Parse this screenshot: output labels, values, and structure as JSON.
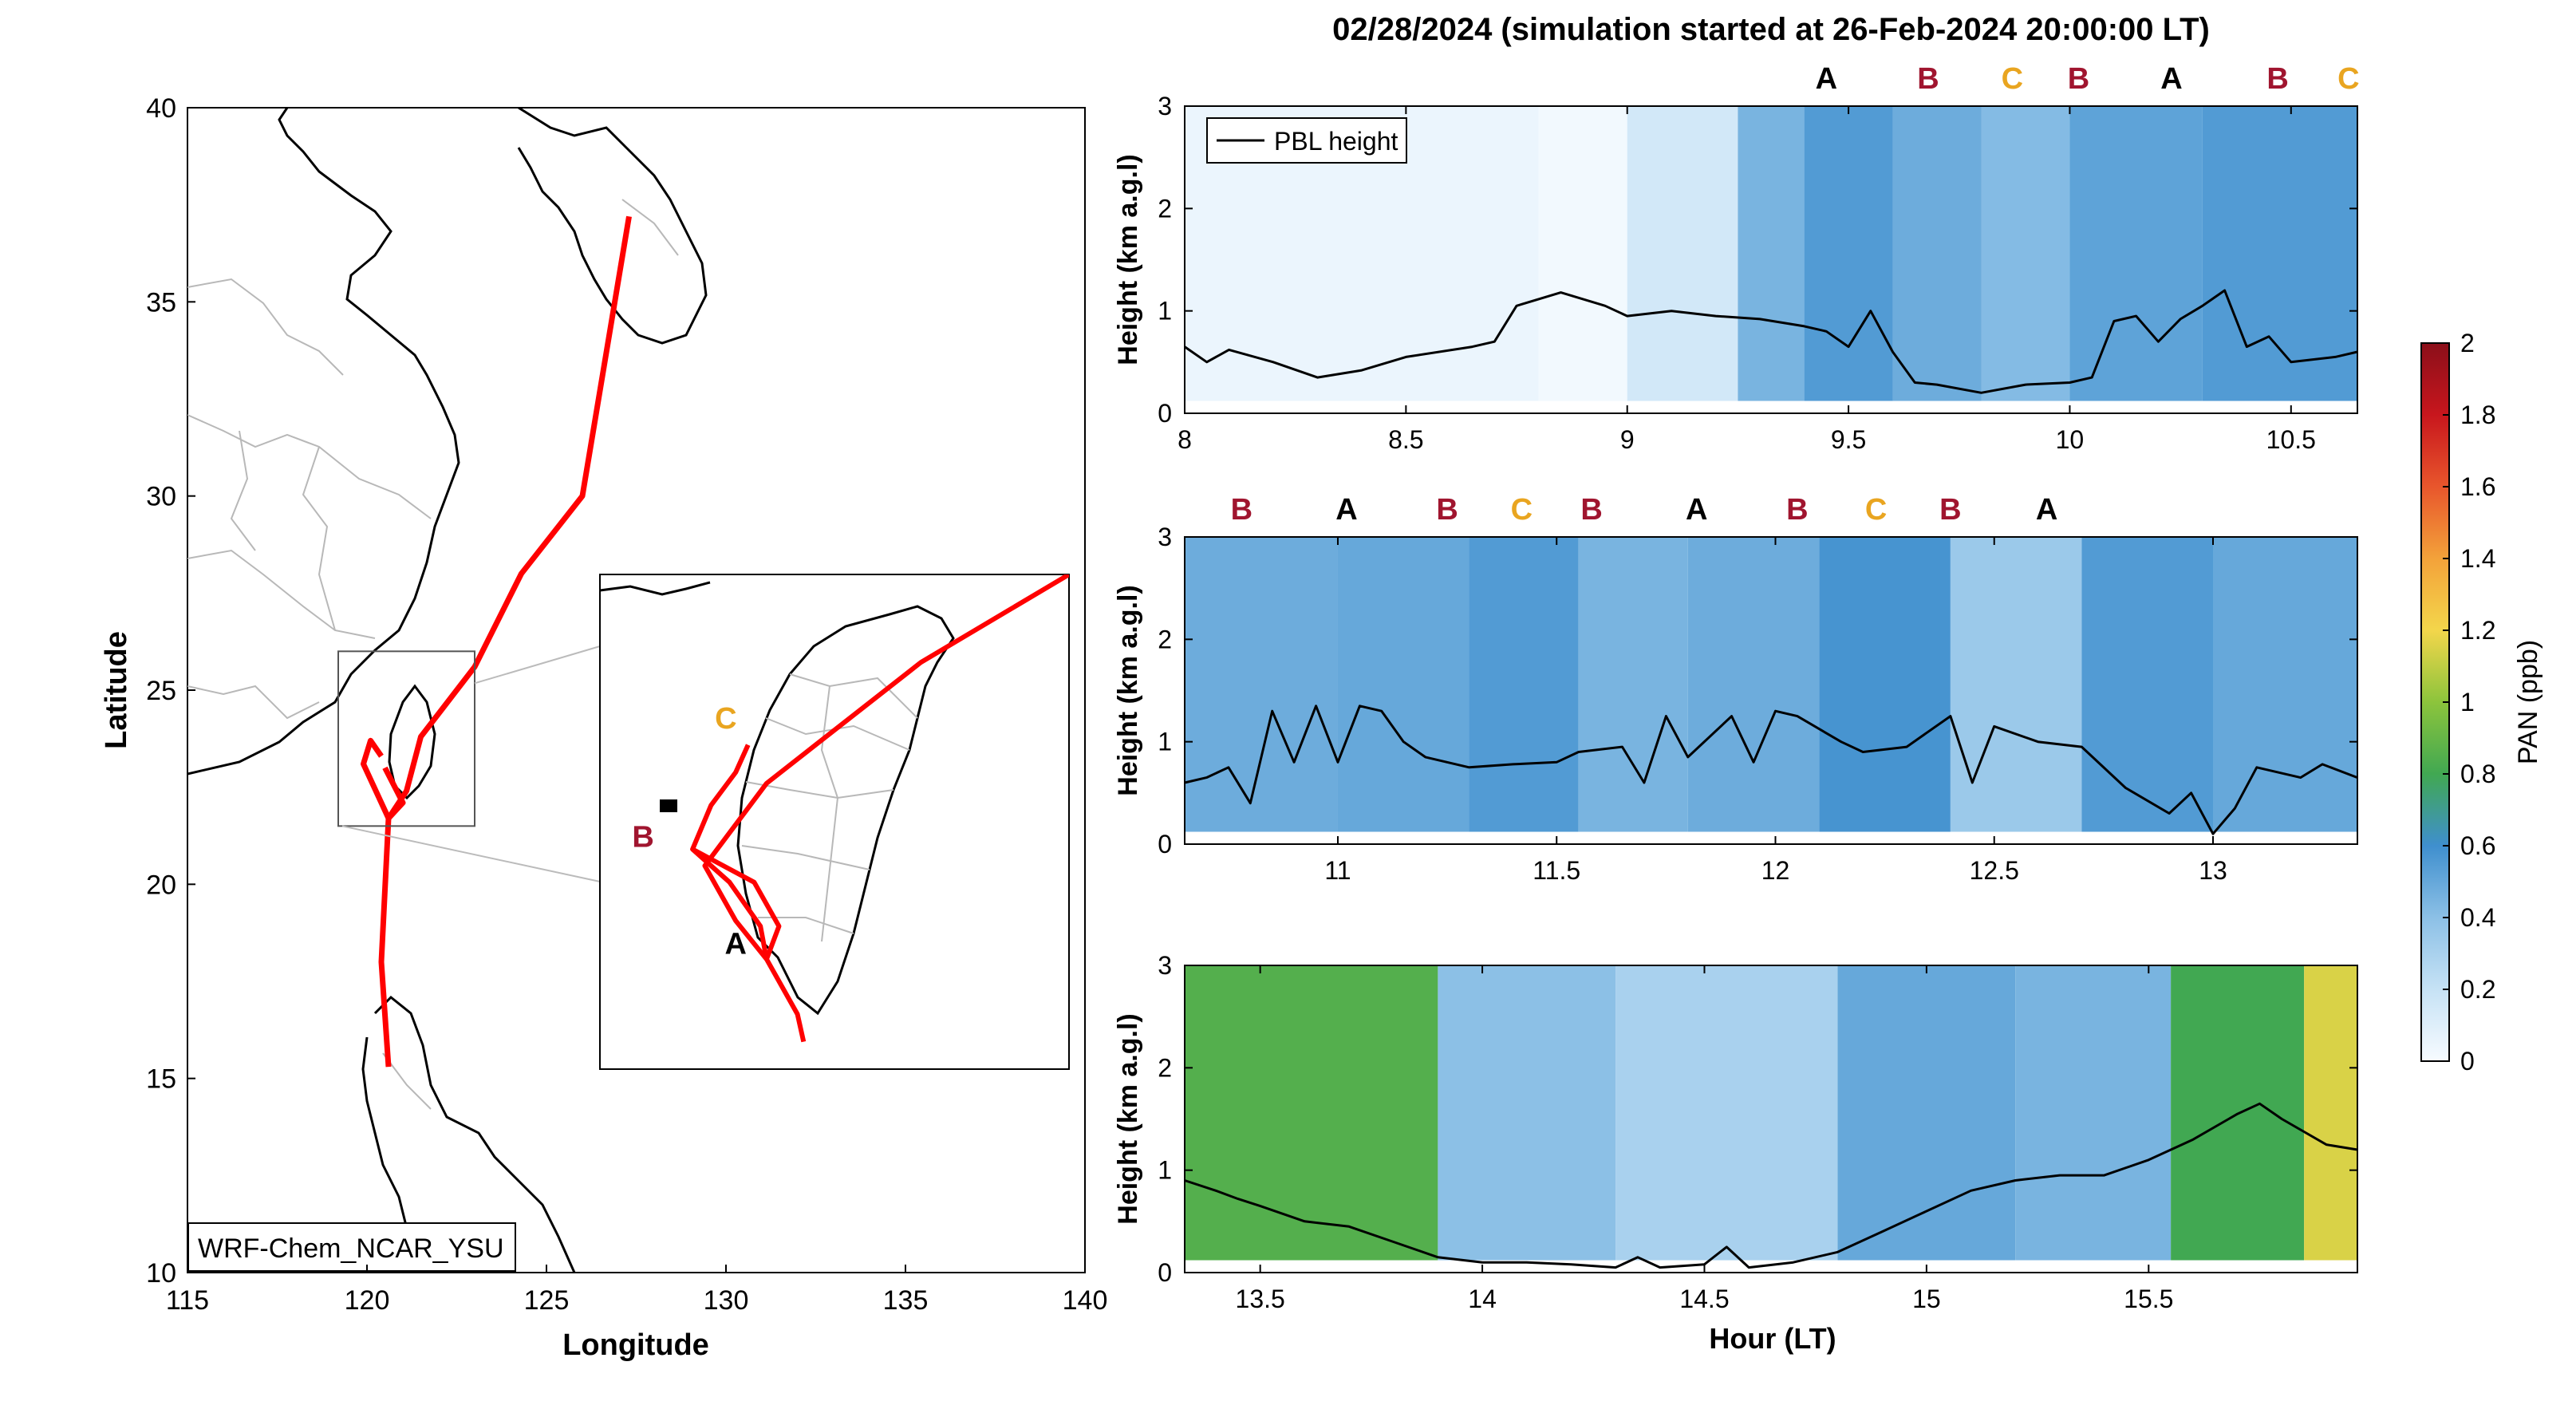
{
  "figure": {
    "title": "02/28/2024 (simulation started at 26-Feb-2024 20:00:00 LT)"
  },
  "map": {
    "xlabel": "Longitude",
    "ylabel": "Latitude",
    "xticks": [
      115,
      120,
      125,
      130,
      135,
      140
    ],
    "yticks": [
      10,
      15,
      20,
      25,
      30,
      35,
      40
    ],
    "xlim": [
      115,
      140
    ],
    "ylim": [
      10,
      40
    ],
    "model_label": "WRF-Chem_NCAR_YSU",
    "track_color": "#ff0000",
    "flight_track": [
      [
        120.6,
        15.3
      ],
      [
        120.4,
        18.0
      ],
      [
        120.6,
        21.7
      ],
      [
        121.1,
        22.4
      ],
      [
        121.5,
        23.8
      ],
      [
        123.0,
        25.6
      ],
      [
        124.3,
        28.0
      ],
      [
        126.0,
        30.0
      ],
      [
        127.3,
        37.2
      ]
    ],
    "track_branches": [
      [
        [
          120.6,
          21.7
        ],
        [
          120.2,
          22.5
        ],
        [
          119.9,
          23.1
        ],
        [
          120.1,
          23.7
        ],
        [
          120.4,
          23.3
        ]
      ],
      [
        [
          120.6,
          21.7
        ],
        [
          121.0,
          22.1
        ],
        [
          120.5,
          23.0
        ]
      ]
    ],
    "inset_extent": {
      "lon": [
        119.2,
        123.0
      ],
      "lat": [
        21.5,
        26.0
      ]
    },
    "inset": {
      "xlim": [
        119.2,
        123.0
      ],
      "ylim": [
        21.5,
        26.0
      ],
      "track": [
        [
          120.85,
          21.75
        ],
        [
          120.8,
          22.0
        ],
        [
          120.55,
          22.5
        ],
        [
          120.3,
          22.85
        ],
        [
          120.05,
          23.35
        ],
        [
          120.55,
          24.1
        ],
        [
          121.8,
          25.2
        ],
        [
          123.0,
          26.0
        ]
      ],
      "branches": [
        [
          [
            120.55,
            22.5
          ],
          [
            120.5,
            22.8
          ],
          [
            120.25,
            23.2
          ],
          [
            119.95,
            23.5
          ],
          [
            120.1,
            23.9
          ],
          [
            120.3,
            24.2
          ],
          [
            120.4,
            24.45
          ]
        ],
        [
          [
            120.55,
            22.5
          ],
          [
            120.65,
            22.8
          ],
          [
            120.45,
            23.2
          ],
          [
            119.95,
            23.5
          ]
        ]
      ],
      "markers": [
        {
          "label": "A",
          "lon": 120.3,
          "lat": 22.55,
          "color": "#000000"
        },
        {
          "label": "B",
          "lon": 119.55,
          "lat": 23.52,
          "color": "#a0152f"
        },
        {
          "label": "C",
          "lon": 120.22,
          "lat": 24.6,
          "color": "#e9a520"
        }
      ]
    }
  },
  "colorbar": {
    "label": "PAN (ppb)",
    "ticks": [
      0,
      0.2,
      0.4,
      0.6,
      0.8,
      1,
      1.2,
      1.4,
      1.6,
      1.8,
      2
    ],
    "tick_labels": [
      "0",
      "0.2",
      "0.4",
      "0.6",
      "0.8",
      "1",
      "1.2",
      "1.4",
      "1.6",
      "1.8",
      "2"
    ],
    "range": [
      0,
      2
    ],
    "stops": [
      {
        "v": 0.0,
        "c": "#f7fbff"
      },
      {
        "v": 0.2,
        "c": "#c6e2f5"
      },
      {
        "v": 0.4,
        "c": "#8cc0e6"
      },
      {
        "v": 0.6,
        "c": "#3f8fce"
      },
      {
        "v": 0.8,
        "c": "#41a852"
      },
      {
        "v": 1.0,
        "c": "#8cc43c"
      },
      {
        "v": 1.2,
        "c": "#f3d64b"
      },
      {
        "v": 1.4,
        "c": "#f3a23a"
      },
      {
        "v": 1.6,
        "c": "#e8562c"
      },
      {
        "v": 1.8,
        "c": "#c8161d"
      },
      {
        "v": 2.0,
        "c": "#8b0f1a"
      }
    ]
  },
  "chart_data": [
    {
      "type": "heatmap",
      "panel": "1",
      "ylabel": "Height (km a.g.l)",
      "xlim": [
        8.0,
        10.65
      ],
      "ylim": [
        0,
        3
      ],
      "xticks": [
        8,
        8.5,
        9,
        9.5,
        10,
        10.5
      ],
      "xtick_labels": [
        "8",
        "8.5",
        "9",
        "9.5",
        "10",
        "10.5"
      ],
      "yticks": [
        0,
        1,
        2,
        3
      ],
      "legend": "PBL height",
      "pan_columns": [
        {
          "x": [
            8.0,
            8.8
          ],
          "pan": 0.05
        },
        {
          "x": [
            8.8,
            9.0
          ],
          "pan": 0.02
        },
        {
          "x": [
            9.0,
            9.25
          ],
          "pan": 0.15
        },
        {
          "x": [
            9.25,
            9.4
          ],
          "pan": 0.45
        },
        {
          "x": [
            9.4,
            9.6
          ],
          "pan": 0.55
        },
        {
          "x": [
            9.6,
            9.8
          ],
          "pan": 0.48
        },
        {
          "x": [
            9.8,
            10.0
          ],
          "pan": 0.42
        },
        {
          "x": [
            10.0,
            10.3
          ],
          "pan": 0.52
        },
        {
          "x": [
            10.3,
            10.65
          ],
          "pan": 0.55
        }
      ],
      "pbl": {
        "x": [
          8.0,
          8.05,
          8.1,
          8.2,
          8.3,
          8.4,
          8.5,
          8.65,
          8.7,
          8.75,
          8.85,
          8.95,
          9.0,
          9.1,
          9.2,
          9.3,
          9.4,
          9.45,
          9.5,
          9.55,
          9.6,
          9.65,
          9.7,
          9.8,
          9.9,
          10.0,
          10.05,
          10.1,
          10.15,
          10.2,
          10.25,
          10.3,
          10.35,
          10.4,
          10.45,
          10.5,
          10.6,
          10.65
        ],
        "y": [
          0.65,
          0.5,
          0.62,
          0.5,
          0.35,
          0.42,
          0.55,
          0.65,
          0.7,
          1.05,
          1.18,
          1.05,
          0.95,
          1.0,
          0.95,
          0.92,
          0.85,
          0.8,
          0.65,
          1.0,
          0.6,
          0.3,
          0.28,
          0.2,
          0.28,
          0.3,
          0.35,
          0.9,
          0.95,
          0.7,
          0.92,
          1.05,
          1.2,
          0.65,
          0.75,
          0.5,
          0.55,
          0.6
        ]
      },
      "markers": [
        {
          "label": "A",
          "x": 9.45
        },
        {
          "label": "B",
          "x": 9.68
        },
        {
          "label": "C",
          "x": 9.87
        },
        {
          "label": "B",
          "x": 10.02
        },
        {
          "label": "A",
          "x": 10.23
        },
        {
          "label": "B",
          "x": 10.47
        },
        {
          "label": "C",
          "x": 10.63
        }
      ]
    },
    {
      "type": "heatmap",
      "panel": "2",
      "ylabel": "Height (km a.g.l)",
      "xlim": [
        10.65,
        13.33
      ],
      "ylim": [
        0,
        3
      ],
      "xticks": [
        11,
        11.5,
        12,
        12.5,
        13
      ],
      "xtick_labels": [
        "11",
        "11.5",
        "12",
        "12.5",
        "13"
      ],
      "yticks": [
        0,
        1,
        2,
        3
      ],
      "pan_columns": [
        {
          "x": [
            10.65,
            11.0
          ],
          "pan": 0.48
        },
        {
          "x": [
            11.0,
            11.3
          ],
          "pan": 0.5
        },
        {
          "x": [
            11.3,
            11.55
          ],
          "pan": 0.55
        },
        {
          "x": [
            11.55,
            11.8
          ],
          "pan": 0.45
        },
        {
          "x": [
            11.8,
            12.1
          ],
          "pan": 0.48
        },
        {
          "x": [
            12.1,
            12.4
          ],
          "pan": 0.58
        },
        {
          "x": [
            12.4,
            12.7
          ],
          "pan": 0.35
        },
        {
          "x": [
            12.7,
            13.0
          ],
          "pan": 0.55
        },
        {
          "x": [
            13.0,
            13.33
          ],
          "pan": 0.5
        }
      ],
      "pbl": {
        "x": [
          10.65,
          10.7,
          10.75,
          10.8,
          10.85,
          10.9,
          10.95,
          11.0,
          11.05,
          11.1,
          11.15,
          11.2,
          11.3,
          11.4,
          11.5,
          11.55,
          11.65,
          11.7,
          11.75,
          11.8,
          11.9,
          11.95,
          12.0,
          12.05,
          12.15,
          12.2,
          12.3,
          12.4,
          12.45,
          12.5,
          12.6,
          12.7,
          12.8,
          12.9,
          12.95,
          13.0,
          13.05,
          13.1,
          13.2,
          13.25,
          13.33
        ],
        "y": [
          0.6,
          0.65,
          0.75,
          0.4,
          1.3,
          0.8,
          1.35,
          0.8,
          1.35,
          1.3,
          1.0,
          0.85,
          0.75,
          0.78,
          0.8,
          0.9,
          0.95,
          0.6,
          1.25,
          0.85,
          1.25,
          0.8,
          1.3,
          1.25,
          1.0,
          0.9,
          0.95,
          1.25,
          0.6,
          1.15,
          1.0,
          0.95,
          0.55,
          0.3,
          0.5,
          0.1,
          0.35,
          0.75,
          0.65,
          0.78,
          0.65
        ]
      },
      "markers": [
        {
          "label": "B",
          "x": 10.78
        },
        {
          "label": "A",
          "x": 11.02
        },
        {
          "label": "B",
          "x": 11.25
        },
        {
          "label": "C",
          "x": 11.42
        },
        {
          "label": "B",
          "x": 11.58
        },
        {
          "label": "A",
          "x": 11.82
        },
        {
          "label": "B",
          "x": 12.05
        },
        {
          "label": "C",
          "x": 12.23
        },
        {
          "label": "B",
          "x": 12.4
        },
        {
          "label": "A",
          "x": 12.62
        }
      ]
    },
    {
      "type": "heatmap",
      "panel": "3",
      "xlabel": "Hour (LT)",
      "ylabel": "Height (km a.g.l)",
      "xlim": [
        13.33,
        15.97
      ],
      "ylim": [
        0,
        3
      ],
      "xticks": [
        13.5,
        14,
        14.5,
        15,
        15.5
      ],
      "xtick_labels": [
        "13.5",
        "14",
        "14.5",
        "15",
        "15.5"
      ],
      "yticks": [
        0,
        1,
        2,
        3
      ],
      "pan_columns": [
        {
          "x": [
            13.33,
            13.9
          ],
          "pan": 0.85
        },
        {
          "x": [
            13.9,
            14.3
          ],
          "pan": 0.4
        },
        {
          "x": [
            14.3,
            14.8
          ],
          "pan": 0.3
        },
        {
          "x": [
            14.8,
            15.2
          ],
          "pan": 0.5
        },
        {
          "x": [
            15.2,
            15.55
          ],
          "pan": 0.45
        },
        {
          "x": [
            15.55,
            15.85
          ],
          "pan": 0.8
        },
        {
          "x": [
            15.85,
            15.97
          ],
          "pan": 1.15
        }
      ],
      "pbl": {
        "x": [
          13.33,
          13.4,
          13.45,
          13.5,
          13.6,
          13.7,
          13.8,
          13.9,
          14.0,
          14.1,
          14.2,
          14.3,
          14.35,
          14.4,
          14.5,
          14.55,
          14.6,
          14.7,
          14.8,
          14.9,
          15.0,
          15.1,
          15.2,
          15.3,
          15.4,
          15.5,
          15.6,
          15.7,
          15.75,
          15.8,
          15.9,
          15.97
        ],
        "y": [
          0.9,
          0.8,
          0.72,
          0.65,
          0.5,
          0.45,
          0.3,
          0.15,
          0.1,
          0.1,
          0.08,
          0.05,
          0.15,
          0.05,
          0.08,
          0.25,
          0.05,
          0.1,
          0.2,
          0.4,
          0.6,
          0.8,
          0.9,
          0.95,
          0.95,
          1.1,
          1.3,
          1.55,
          1.65,
          1.5,
          1.25,
          1.2
        ]
      }
    }
  ]
}
